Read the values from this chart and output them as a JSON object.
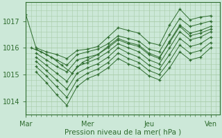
{
  "bg_color": "#cce8d8",
  "line_color": "#2d6b2d",
  "grid_color": "#a8cca8",
  "xlabel": "Pression niveau de la mer( hPa )",
  "xtick_labels": [
    "Mar",
    "Mer",
    "Jeu",
    "Ven"
  ],
  "xtick_positions": [
    0,
    96,
    192,
    288
  ],
  "ytick_labels": [
    "1014",
    "1015",
    "1016",
    "1017"
  ],
  "ytick_values": [
    1014,
    1015,
    1016,
    1017
  ],
  "ylim": [
    1013.5,
    1017.7
  ],
  "xlim": [
    0,
    302
  ],
  "series": [
    [
      0,
      1017.25,
      16,
      1016.0,
      32,
      1015.85,
      48,
      1015.75,
      64,
      1015.6,
      80,
      1015.9,
      96,
      1015.95,
      112,
      1016.05,
      128,
      1016.4,
      144,
      1016.75,
      160,
      1016.65,
      176,
      1016.55,
      192,
      1016.2,
      208,
      1016.1,
      224,
      1016.85,
      240,
      1017.45,
      256,
      1017.05,
      272,
      1017.15,
      288,
      1017.2
    ],
    [
      16,
      1015.95,
      32,
      1015.75,
      48,
      1015.55,
      64,
      1015.35,
      80,
      1015.75,
      96,
      1015.85,
      112,
      1015.95,
      128,
      1016.15,
      144,
      1016.45,
      160,
      1016.35,
      176,
      1016.25,
      192,
      1015.95,
      208,
      1015.85,
      224,
      1016.5,
      240,
      1017.1,
      256,
      1016.8,
      272,
      1016.9,
      288,
      1017.0
    ],
    [
      16,
      1015.8,
      32,
      1015.55,
      48,
      1015.3,
      64,
      1015.1,
      80,
      1015.55,
      96,
      1015.65,
      112,
      1015.75,
      128,
      1016.0,
      144,
      1016.3,
      160,
      1016.15,
      176,
      1016.05,
      192,
      1015.75,
      208,
      1015.6,
      224,
      1016.25,
      240,
      1016.85,
      256,
      1016.55,
      272,
      1016.65,
      288,
      1016.8
    ],
    [
      16,
      1015.65,
      32,
      1015.35,
      48,
      1015.05,
      64,
      1014.75,
      80,
      1015.3,
      96,
      1015.45,
      112,
      1015.6,
      128,
      1015.85,
      144,
      1016.15,
      160,
      1016.0,
      176,
      1015.85,
      192,
      1015.55,
      208,
      1015.4,
      224,
      1016.0,
      240,
      1016.6,
      256,
      1016.3,
      272,
      1016.4,
      288,
      1016.6
    ],
    [
      16,
      1015.5,
      32,
      1015.15,
      48,
      1014.8,
      64,
      1014.45,
      80,
      1015.05,
      96,
      1015.25,
      112,
      1015.4,
      128,
      1015.65,
      144,
      1016.0,
      160,
      1015.8,
      176,
      1015.65,
      192,
      1015.35,
      208,
      1015.2,
      224,
      1015.75,
      240,
      1016.35,
      256,
      1016.05,
      272,
      1016.15,
      288,
      1016.4
    ],
    [
      16,
      1015.3,
      32,
      1014.95,
      48,
      1014.55,
      64,
      1014.15,
      80,
      1014.8,
      96,
      1015.05,
      112,
      1015.2,
      128,
      1015.45,
      144,
      1015.8,
      160,
      1015.6,
      176,
      1015.45,
      192,
      1015.15,
      208,
      1015.0,
      224,
      1015.5,
      240,
      1016.1,
      256,
      1015.8,
      272,
      1015.9,
      288,
      1016.2
    ],
    [
      16,
      1015.1,
      32,
      1014.7,
      48,
      1014.25,
      64,
      1013.85,
      80,
      1014.55,
      96,
      1014.85,
      112,
      1015.0,
      128,
      1015.25,
      144,
      1015.6,
      160,
      1015.4,
      176,
      1015.25,
      192,
      1014.95,
      208,
      1014.8,
      224,
      1015.25,
      240,
      1015.85,
      256,
      1015.55,
      272,
      1015.65,
      288,
      1016.0
    ],
    [
      8,
      1016.0,
      24,
      1015.85,
      40,
      1015.65,
      56,
      1015.35,
      72,
      1015.05,
      88,
      1015.45,
      96,
      1015.55,
      112,
      1015.75,
      128,
      1016.05,
      144,
      1016.35,
      160,
      1016.2,
      176,
      1016.1,
      192,
      1015.8,
      208,
      1015.65,
      224,
      1016.2,
      240,
      1016.8,
      256,
      1016.45,
      272,
      1016.55,
      288,
      1016.7
    ]
  ]
}
